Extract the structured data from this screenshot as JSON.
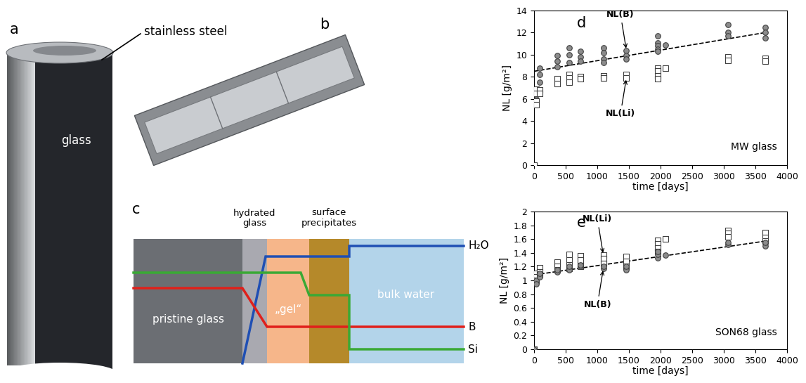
{
  "diagram": {
    "panel_a": {
      "label": "a",
      "callout": "stainless steel",
      "material": "glass"
    },
    "panel_b": {
      "label": "b"
    },
    "panel_c": {
      "label": "c",
      "headers": [
        "hydrated\nglass",
        "surface\nprecipitates"
      ],
      "zones": [
        "pristine glass",
        "„gel“",
        "bulk water"
      ],
      "profiles": [
        "H₂O",
        "B",
        "Si"
      ]
    }
  },
  "chart_data": [
    {
      "type": "scatter",
      "label": "d",
      "title": "MW glass",
      "x_label": "time [days]",
      "y_label": "NL [g/m²]",
      "xlim": [
        0,
        4000
      ],
      "xticks": [
        0,
        500,
        1000,
        1500,
        2000,
        2500,
        3000,
        3500,
        4000
      ],
      "ylim": [
        0,
        14
      ],
      "yticks": [
        0,
        2,
        4,
        6,
        8,
        10,
        12,
        14
      ],
      "grid": false,
      "series": [
        {
          "name": "NL(B)",
          "type": "scatter",
          "marker": "circle",
          "color": "#8c8c8c",
          "x": [
            0,
            28,
            28,
            28,
            90,
            90,
            90,
            365,
            365,
            365,
            550,
            550,
            550,
            730,
            730,
            730,
            1095,
            1095,
            1095,
            1095,
            1460,
            1460,
            1460,
            1950,
            1950,
            1950,
            1950,
            1950,
            2080,
            3070,
            3070,
            3070,
            3650,
            3650,
            3650
          ],
          "values": [
            0,
            6.8,
            6.5,
            6.0,
            8.8,
            8.2,
            7.5,
            9.9,
            9.4,
            8.9,
            10.6,
            10.0,
            9.3,
            10.3,
            9.8,
            9.4,
            10.6,
            10.2,
            9.6,
            9.3,
            10.4,
            9.9,
            9.6,
            11.7,
            11.1,
            10.8,
            10.5,
            10.3,
            10.9,
            12.7,
            12.0,
            11.7,
            12.5,
            12.0,
            11.5
          ]
        },
        {
          "name": "NL(Li)",
          "type": "scatter",
          "marker": "square",
          "color": "#ffffff",
          "x": [
            0,
            28,
            28,
            28,
            28,
            90,
            90,
            365,
            365,
            550,
            550,
            550,
            730,
            730,
            1095,
            1095,
            1460,
            1460,
            1950,
            1950,
            1950,
            1950,
            2080,
            3070,
            3070,
            3650,
            3650
          ],
          "values": [
            0,
            6.9,
            6.5,
            5.8,
            5.5,
            6.8,
            6.5,
            7.8,
            7.4,
            8.2,
            7.9,
            7.5,
            8.0,
            7.8,
            8.1,
            7.9,
            8.2,
            7.9,
            8.8,
            8.5,
            8.1,
            7.8,
            8.8,
            9.8,
            9.5,
            9.7,
            9.4
          ]
        },
        {
          "type": "line",
          "line_style": "dashed",
          "color": "#000000",
          "x": [
            0,
            3650
          ],
          "values": [
            8.5,
            12.0
          ]
        }
      ],
      "annotations": [
        {
          "text": "NL(B)",
          "x": 1460,
          "y": 10.4
        },
        {
          "text": "NL(Li)",
          "x": 1460,
          "y": 7.9
        }
      ]
    },
    {
      "type": "scatter",
      "label": "e",
      "title": "SON68 glass",
      "x_label": "time [days]",
      "y_label": "NL [g/m²]",
      "xlim": [
        0,
        4000
      ],
      "xticks": [
        0,
        500,
        1000,
        1500,
        2000,
        2500,
        3000,
        3500,
        4000
      ],
      "ylim": [
        0,
        2
      ],
      "yticks": [
        0,
        0.2,
        0.4,
        0.6,
        0.8,
        1,
        1.2,
        1.4,
        1.6,
        1.8,
        2
      ],
      "grid": false,
      "series": [
        {
          "name": "NL(Li)",
          "type": "scatter",
          "marker": "square",
          "color": "#ffffff",
          "x": [
            0,
            28,
            28,
            28,
            90,
            90,
            90,
            365,
            365,
            365,
            550,
            550,
            550,
            550,
            730,
            730,
            730,
            1095,
            1095,
            1095,
            1460,
            1460,
            1460,
            1950,
            1950,
            1950,
            1950,
            2080,
            3070,
            3070,
            3070,
            3650,
            3650,
            3650
          ],
          "values": [
            0,
            1.1,
            1.05,
            1.0,
            1.18,
            1.12,
            1.08,
            1.27,
            1.2,
            1.15,
            1.38,
            1.3,
            1.22,
            1.17,
            1.36,
            1.3,
            1.2,
            1.37,
            1.32,
            1.25,
            1.35,
            1.28,
            1.2,
            1.58,
            1.53,
            1.47,
            1.42,
            1.6,
            1.72,
            1.68,
            1.63,
            1.69,
            1.62,
            1.57
          ]
        },
        {
          "name": "NL(B)",
          "type": "scatter",
          "marker": "circle",
          "color": "#8c8c8c",
          "x": [
            0,
            28,
            28,
            90,
            90,
            365,
            365,
            550,
            550,
            730,
            730,
            1095,
            1095,
            1460,
            1460,
            1950,
            1950,
            1950,
            2080,
            3070,
            3070,
            3650,
            3650
          ],
          "values": [
            0,
            1.0,
            0.95,
            1.05,
            1.1,
            1.12,
            1.15,
            1.15,
            1.2,
            1.2,
            1.22,
            1.17,
            1.2,
            1.15,
            1.2,
            1.33,
            1.38,
            1.42,
            1.37,
            1.52,
            1.55,
            1.5,
            1.55
          ]
        },
        {
          "type": "line",
          "line_style": "dashed",
          "color": "#000000",
          "x": [
            0,
            3650
          ],
          "values": [
            1.08,
            1.57
          ]
        }
      ],
      "annotations": [
        {
          "text": "NL(Li)",
          "x": 1095,
          "y": 1.37
        },
        {
          "text": "NL(B)",
          "x": 1095,
          "y": 1.17
        }
      ]
    }
  ]
}
